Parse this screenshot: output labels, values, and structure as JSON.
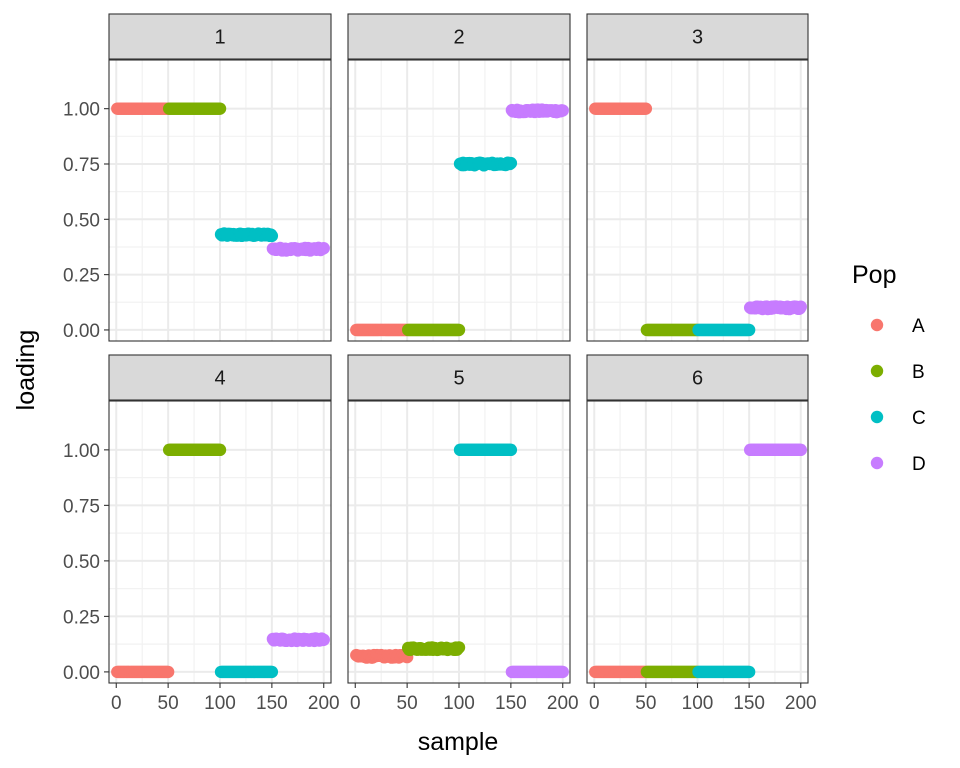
{
  "chart_data": {
    "type": "scatter",
    "title": "",
    "xlabel": "sample",
    "ylabel": "loading",
    "xlim": [
      -7,
      207
    ],
    "ylim": [
      -0.05,
      1.22
    ],
    "x_ticks": [
      0,
      50,
      100,
      150,
      200
    ],
    "y_ticks": [
      0,
      0.25,
      0.5,
      0.75,
      1.0
    ],
    "y_tick_labels": [
      "0.00",
      "0.25",
      "0.50",
      "0.75",
      "1.00"
    ],
    "grid": true,
    "legend": {
      "title": "Pop",
      "position": "right",
      "entries": [
        {
          "label": "A",
          "color": "#F8766D"
        },
        {
          "label": "B",
          "color": "#7CAE00"
        },
        {
          "label": "C",
          "color": "#00BFC4"
        },
        {
          "label": "D",
          "color": "#C77CFF"
        }
      ]
    },
    "panels": [
      {
        "label": "1",
        "segments": [
          {
            "group": "A",
            "x": [
              1,
              50
            ],
            "y": 1.0
          },
          {
            "group": "B",
            "x": [
              51,
              100
            ],
            "y": 1.0
          },
          {
            "group": "C",
            "x": [
              101,
              150
            ],
            "y": 0.43
          },
          {
            "group": "D",
            "x": [
              151,
              200
            ],
            "y": 0.365
          }
        ]
      },
      {
        "label": "2",
        "segments": [
          {
            "group": "A",
            "x": [
              1,
              50
            ],
            "y": 0.0
          },
          {
            "group": "B",
            "x": [
              51,
              100
            ],
            "y": 0.0
          },
          {
            "group": "C",
            "x": [
              101,
              150
            ],
            "y": 0.75
          },
          {
            "group": "D",
            "x": [
              151,
              200
            ],
            "y": 0.99
          }
        ]
      },
      {
        "label": "3",
        "segments": [
          {
            "group": "A",
            "x": [
              1,
              50
            ],
            "y": 1.0
          },
          {
            "group": "B",
            "x": [
              51,
              100
            ],
            "y": 0.0
          },
          {
            "group": "C",
            "x": [
              101,
              150
            ],
            "y": 0.0
          },
          {
            "group": "D",
            "x": [
              151,
              200
            ],
            "y": 0.1
          }
        ]
      },
      {
        "label": "4",
        "segments": [
          {
            "group": "A",
            "x": [
              1,
              50
            ],
            "y": 0.0
          },
          {
            "group": "B",
            "x": [
              51,
              100
            ],
            "y": 1.0
          },
          {
            "group": "C",
            "x": [
              101,
              150
            ],
            "y": 0.0
          },
          {
            "group": "D",
            "x": [
              151,
              200
            ],
            "y": 0.145
          }
        ]
      },
      {
        "label": "5",
        "segments": [
          {
            "group": "A",
            "x": [
              1,
              50
            ],
            "y": 0.07
          },
          {
            "group": "B",
            "x": [
              51,
              100
            ],
            "y": 0.105
          },
          {
            "group": "C",
            "x": [
              101,
              150
            ],
            "y": 1.0
          },
          {
            "group": "D",
            "x": [
              151,
              200
            ],
            "y": 0.0
          }
        ]
      },
      {
        "label": "6",
        "segments": [
          {
            "group": "A",
            "x": [
              1,
              50
            ],
            "y": 0.0
          },
          {
            "group": "B",
            "x": [
              51,
              100
            ],
            "y": 0.0
          },
          {
            "group": "C",
            "x": [
              101,
              150
            ],
            "y": 0.0
          },
          {
            "group": "D",
            "x": [
              151,
              200
            ],
            "y": 1.0
          }
        ]
      }
    ]
  }
}
